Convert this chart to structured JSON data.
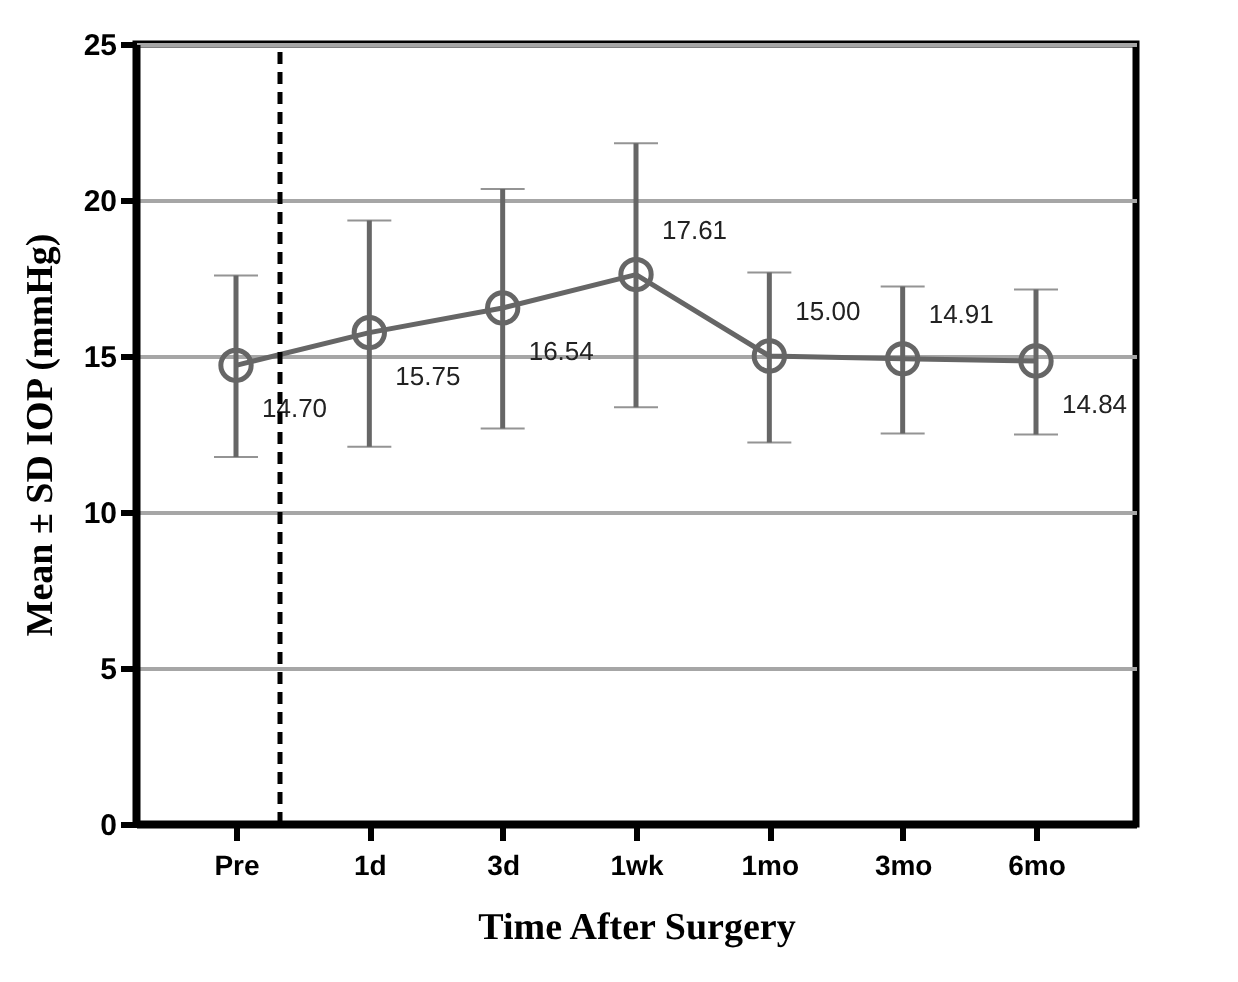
{
  "chart_data": {
    "type": "line",
    "xlabel": "Time After Surgery",
    "ylabel": "Mean ± SD IOP (mmHg)",
    "categories": [
      "Pre",
      "1d",
      "3d",
      "1wk",
      "1mo",
      "3mo",
      "6mo"
    ],
    "series": [
      {
        "color": "#666666",
        "values": [
          14.7,
          15.75,
          16.54,
          17.61,
          15.0,
          14.91,
          14.84
        ],
        "errors": [
          [
            11.76,
            17.58
          ],
          [
            12.09,
            19.34
          ],
          [
            12.68,
            20.35
          ],
          [
            13.36,
            21.82
          ],
          [
            12.23,
            17.68
          ],
          [
            12.52,
            17.23
          ],
          [
            12.48,
            17.13
          ]
        ]
      }
    ],
    "value_labels": [
      "14.70",
      "15.75",
      "16.54",
      "17.61",
      "15.00",
      "14.91",
      "14.84"
    ],
    "ylim": [
      0,
      25
    ],
    "yticks": [
      0,
      5,
      10,
      15,
      20,
      25
    ],
    "grid": "y",
    "marker": "circle",
    "line_style": "solid",
    "ref_lines": [
      {
        "axis": "x",
        "value": "Pre",
        "line_style": "dashed",
        "color": "#000000"
      }
    ]
  }
}
